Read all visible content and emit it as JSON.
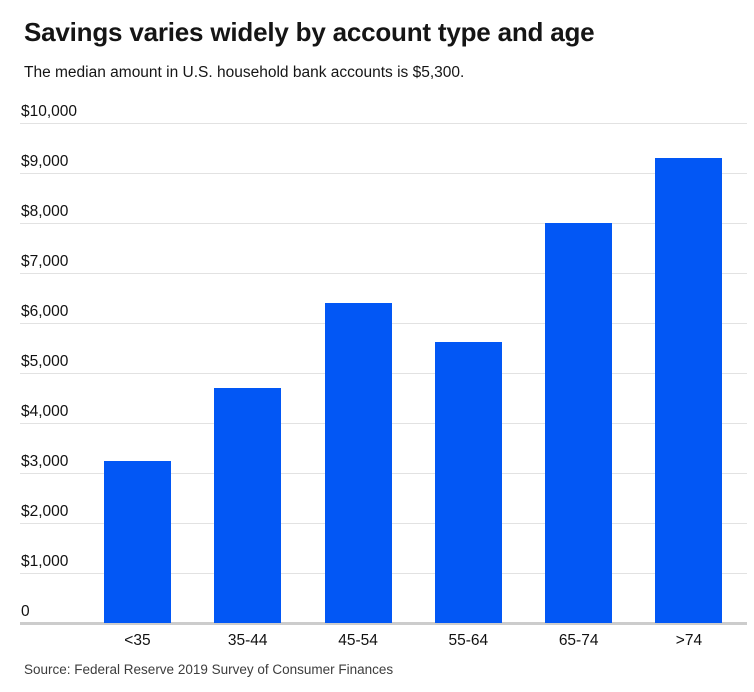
{
  "chart_data": {
    "type": "bar",
    "title": "Savings varies widely by account type and age",
    "subtitle": "The median amount in U.S. household bank accounts is $5,300.",
    "categories": [
      "<35",
      "35-44",
      "45-54",
      "55-64",
      "65-74",
      ">74"
    ],
    "values": [
      3240,
      4710,
      6400,
      5620,
      8000,
      9300
    ],
    "xlabel": "",
    "ylabel": "",
    "ylim": [
      0,
      10000
    ],
    "yticks": [
      {
        "value": 10000,
        "label": "$10,000"
      },
      {
        "value": 9000,
        "label": "$9,000"
      },
      {
        "value": 8000,
        "label": "$8,000"
      },
      {
        "value": 7000,
        "label": "$7,000"
      },
      {
        "value": 6000,
        "label": "$6,000"
      },
      {
        "value": 5000,
        "label": "$5,000"
      },
      {
        "value": 4000,
        "label": "$4,000"
      },
      {
        "value": 3000,
        "label": "$3,000"
      },
      {
        "value": 2000,
        "label": "$2,000"
      },
      {
        "value": 1000,
        "label": "$1,000"
      },
      {
        "value": 0,
        "label": "0"
      }
    ],
    "grid": true,
    "legend": "none",
    "source": "Source: Federal Reserve 2019 Survey of Consumer Finances"
  },
  "colors": {
    "bar": "#0257f5",
    "gridline": "#e2e2e2",
    "axis_line": "#cccccc"
  }
}
